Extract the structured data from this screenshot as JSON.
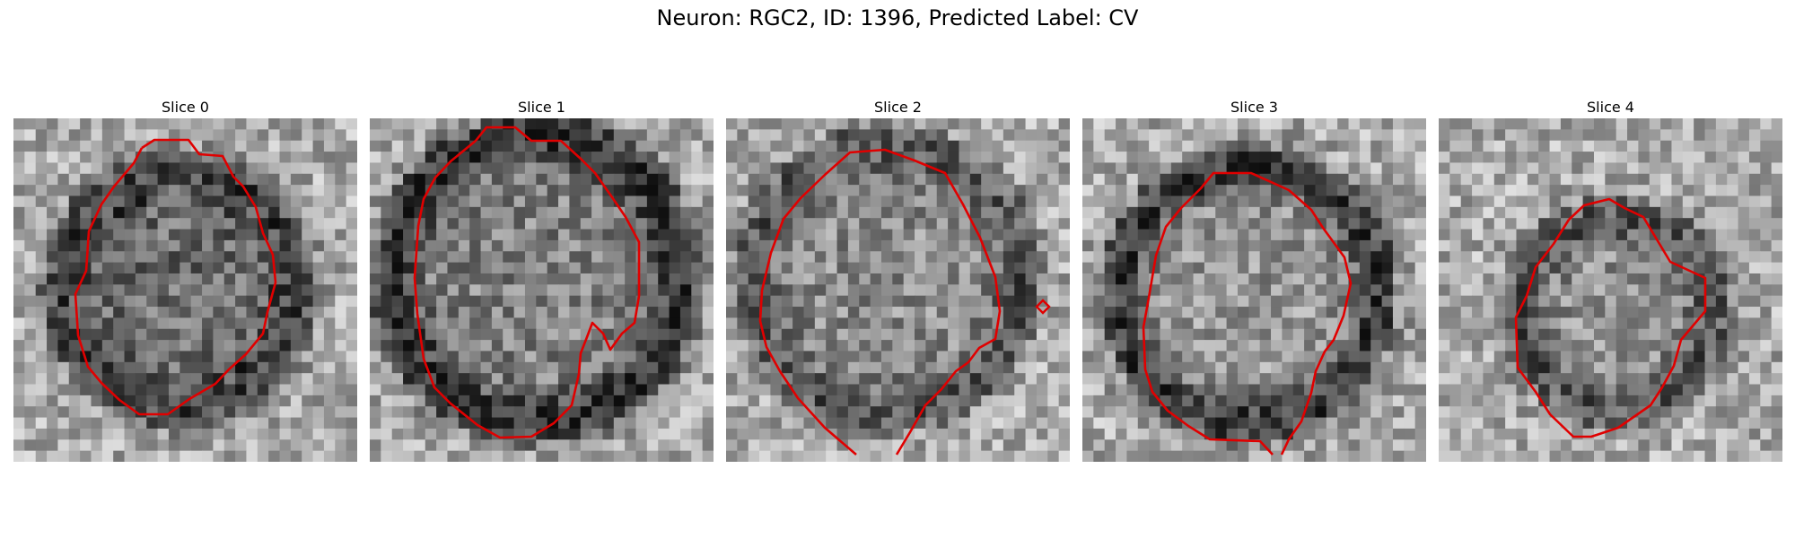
{
  "figure": {
    "title": "Neuron: RGC2, ID: 1396, Predicted Label: CV",
    "contour_color": "#e00000"
  },
  "slices": [
    {
      "title": "Slice 0"
    },
    {
      "title": "Slice 1"
    },
    {
      "title": "Slice 2"
    },
    {
      "title": "Slice 3"
    },
    {
      "title": "Slice 4"
    }
  ]
}
